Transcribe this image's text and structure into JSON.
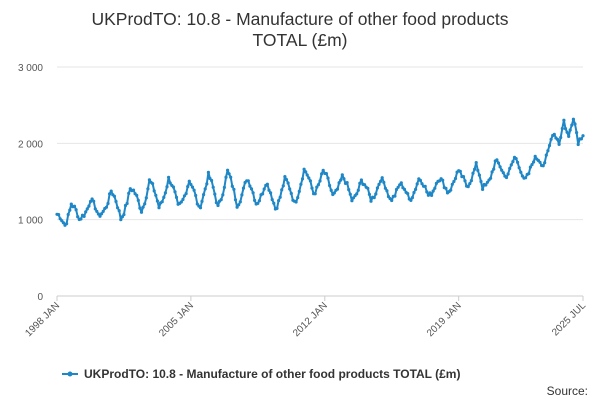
{
  "chart_data": {
    "type": "line",
    "title_lines": [
      "UKProdTO: 10.8 - Manufacture of other food products",
      "TOTAL (£m)"
    ],
    "xlabel": "",
    "ylabel": "",
    "x_tick_labels": [
      "1998 JAN",
      "2005 JAN",
      "2012 JAN",
      "2019 JAN",
      "2025 JUL"
    ],
    "y_tick_labels": [
      "0",
      "1 000",
      "2 000",
      "3 000"
    ],
    "ylim": [
      0,
      3000
    ],
    "grid": true,
    "legend_position": "bottom",
    "source_label": "Source:",
    "colors": {
      "series": "#1f87c6"
    },
    "series": [
      {
        "name": "UKProdTO: 10.8 - Manufacture of other food products TOTAL (£m)",
        "start": "1998-01",
        "frequency": "monthly",
        "keypoints": [
          [
            "1998-01",
            1020
          ],
          [
            "1998-06",
            960
          ],
          [
            "1998-10",
            1230
          ],
          [
            "1999-03",
            960
          ],
          [
            "1999-10",
            1290
          ],
          [
            "2000-03",
            1000
          ],
          [
            "2000-11",
            1370
          ],
          [
            "2001-05",
            1020
          ],
          [
            "2001-11",
            1400
          ],
          [
            "2002-06",
            1150
          ],
          [
            "2002-11",
            1500
          ],
          [
            "2003-05",
            1170
          ],
          [
            "2003-11",
            1530
          ],
          [
            "2004-05",
            1180
          ],
          [
            "2004-12",
            1480
          ],
          [
            "2005-06",
            1180
          ],
          [
            "2005-12",
            1550
          ],
          [
            "2006-06",
            1200
          ],
          [
            "2006-12",
            1600
          ],
          [
            "2007-06",
            1230
          ],
          [
            "2007-12",
            1500
          ],
          [
            "2008-06",
            1250
          ],
          [
            "2008-12",
            1450
          ],
          [
            "2009-06",
            1180
          ],
          [
            "2009-12",
            1500
          ],
          [
            "2010-06",
            1250
          ],
          [
            "2010-12",
            1620
          ],
          [
            "2011-06",
            1380
          ],
          [
            "2011-12",
            1600
          ],
          [
            "2012-06",
            1350
          ],
          [
            "2012-12",
            1530
          ],
          [
            "2013-06",
            1290
          ],
          [
            "2013-12",
            1470
          ],
          [
            "2014-06",
            1300
          ],
          [
            "2014-12",
            1500
          ],
          [
            "2015-06",
            1300
          ],
          [
            "2015-12",
            1430
          ],
          [
            "2016-06",
            1300
          ],
          [
            "2016-12",
            1500
          ],
          [
            "2017-06",
            1350
          ],
          [
            "2017-12",
            1500
          ],
          [
            "2018-06",
            1400
          ],
          [
            "2018-12",
            1580
          ],
          [
            "2019-06",
            1480
          ],
          [
            "2019-12",
            1680
          ],
          [
            "2020-04",
            1400
          ],
          [
            "2020-12",
            1720
          ],
          [
            "2021-06",
            1600
          ],
          [
            "2021-12",
            1780
          ],
          [
            "2022-06",
            1550
          ],
          [
            "2022-12",
            1750
          ],
          [
            "2023-06",
            1750
          ],
          [
            "2023-12",
            2100
          ],
          [
            "2024-04",
            1980
          ],
          [
            "2024-07",
            2350
          ],
          [
            "2024-10",
            2100
          ],
          [
            "2025-01",
            2300
          ],
          [
            "2025-04",
            2000
          ],
          [
            "2025-07",
            2180
          ]
        ]
      }
    ]
  }
}
